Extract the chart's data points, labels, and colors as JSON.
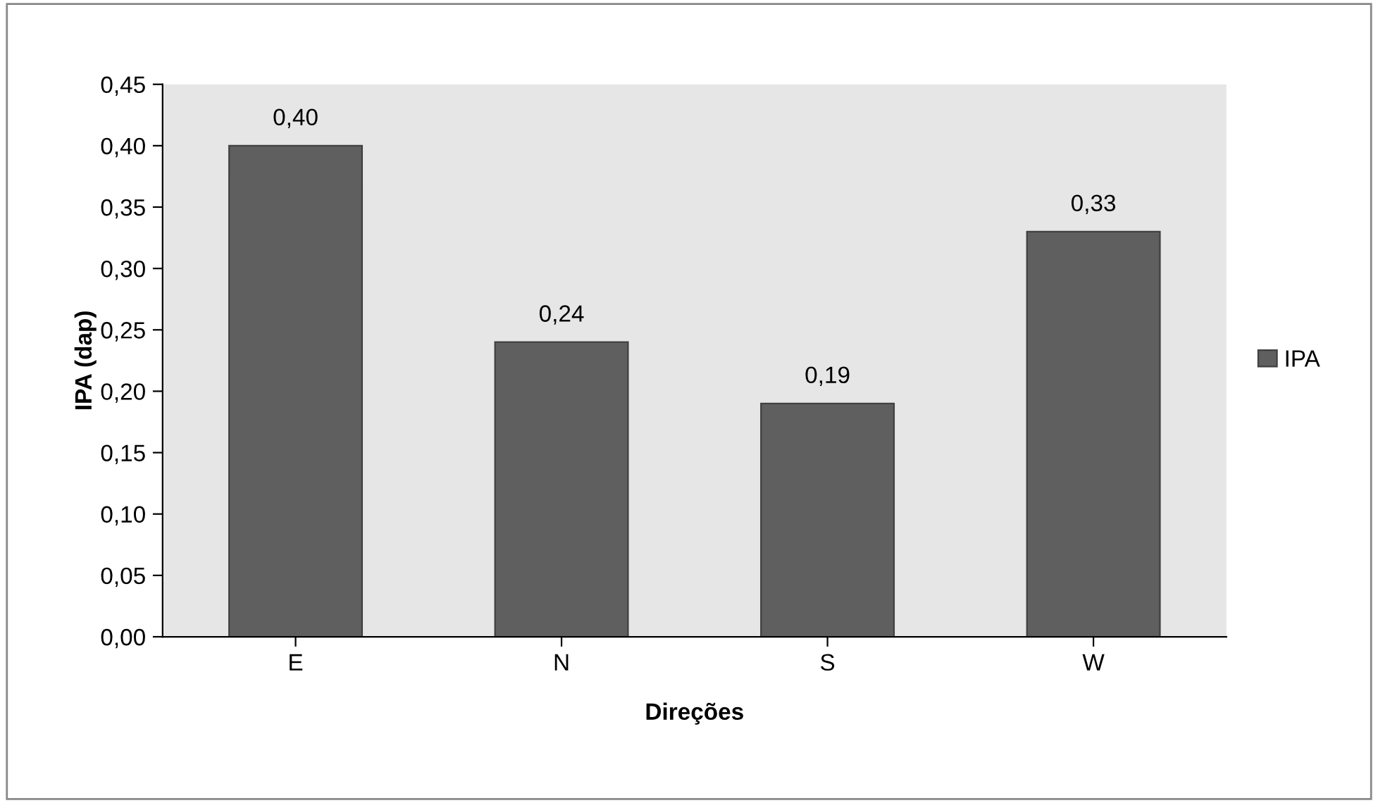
{
  "chart_data": {
    "type": "bar",
    "categories": [
      "E",
      "N",
      "S",
      "W"
    ],
    "series": [
      {
        "name": "IPA",
        "color": "#5f5f5f",
        "values": [
          0.4,
          0.24,
          0.19,
          0.33
        ],
        "value_labels": [
          "0,40",
          "0,24",
          "0,19",
          "0,33"
        ]
      }
    ],
    "xlabel": "Direções",
    "ylabel": "IPA (dap)",
    "ylim": [
      0,
      0.45
    ],
    "yticks": [
      {
        "value": 0,
        "label": "0,00"
      },
      {
        "value": 0.05,
        "label": "0,05"
      },
      {
        "value": 0.1,
        "label": "0,10"
      },
      {
        "value": 0.15,
        "label": "0,15"
      },
      {
        "value": 0.2,
        "label": "0,20"
      },
      {
        "value": 0.25,
        "label": "0,25"
      },
      {
        "value": 0.3,
        "label": "0,30"
      },
      {
        "value": 0.35,
        "label": "0,35"
      },
      {
        "value": 0.4,
        "label": "0,40"
      },
      {
        "value": 0.45,
        "label": "0,45"
      }
    ],
    "grid": false,
    "legend": "right"
  }
}
